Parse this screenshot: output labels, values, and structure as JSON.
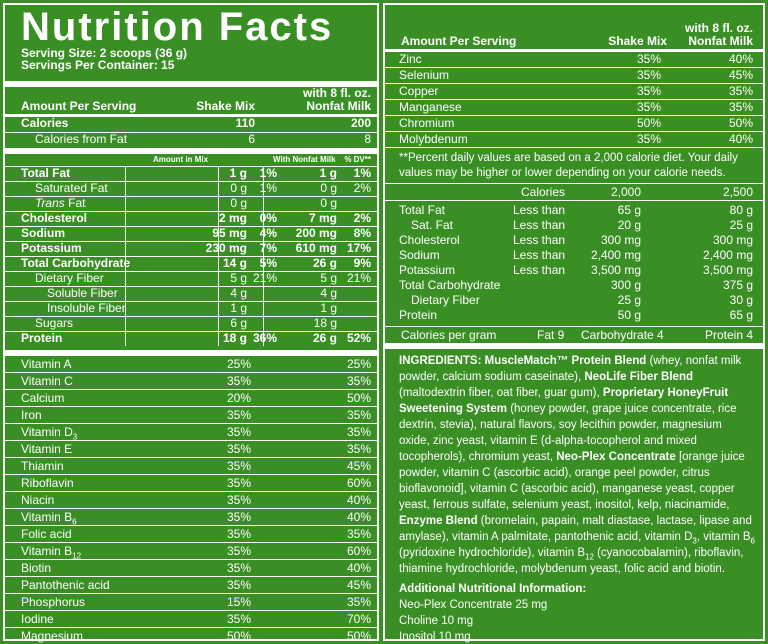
{
  "left": {
    "title": "Nutrition Facts",
    "serving_size": "Serving Size: 2 scoops (36 g)",
    "servings_per_container": "Servings Per Container: 15",
    "header": {
      "with_line1": "with 8 fl. oz.",
      "amount_per_serving": "Amount Per Serving",
      "shake_mix": "Shake Mix",
      "nonfat_milk": "Nonfat Milk"
    },
    "calories": [
      {
        "label": "Calories",
        "mix": "110",
        "milk": "200",
        "bold": true,
        "indent": 0
      },
      {
        "label": "Calories from Fat",
        "mix": "6",
        "milk": "8",
        "bold": false,
        "indent": 1
      }
    ],
    "sub_header": {
      "in_mix": "Amount in Mix",
      "with_milk": "With Nonfat Milk",
      "dv": "% DV**"
    },
    "nutrients": [
      {
        "label": "Total Fat",
        "amt": "1 g",
        "dv": "1%",
        "amt2": "1 g",
        "dv2": "1%",
        "bold": true,
        "indent": 0
      },
      {
        "label": "Saturated Fat",
        "amt": "0 g",
        "dv": "1%",
        "amt2": "0 g",
        "dv2": "2%",
        "bold": false,
        "indent": 1
      },
      {
        "label": "Trans Fat",
        "amt": "0 g",
        "dv": "",
        "amt2": "0 g",
        "dv2": "",
        "bold": false,
        "indent": 1,
        "italic_word": "Trans",
        "rest": " Fat"
      },
      {
        "label": "Cholesterol",
        "amt": "2 mg",
        "dv": "0%",
        "amt2": "7 mg",
        "dv2": "2%",
        "bold": true,
        "indent": 0
      },
      {
        "label": "Sodium",
        "amt": "95 mg",
        "dv": "4%",
        "amt2": "200 mg",
        "dv2": "8%",
        "bold": true,
        "indent": 0
      },
      {
        "label": "Potassium",
        "amt": "230 mg",
        "dv": "7%",
        "amt2": "610 mg",
        "dv2": "17%",
        "bold": true,
        "indent": 0
      },
      {
        "label": "Total Carbohydrate",
        "amt": "14 g",
        "dv": "5%",
        "amt2": "26 g",
        "dv2": "9%",
        "bold": true,
        "indent": 0
      },
      {
        "label": "Dietary Fiber",
        "amt": "5 g",
        "dv": "21%",
        "amt2": "5 g",
        "dv2": "21%",
        "bold": false,
        "indent": 1
      },
      {
        "label": "Soluble Fiber",
        "amt": "4 g",
        "dv": "",
        "amt2": "4 g",
        "dv2": "",
        "bold": false,
        "indent": 2
      },
      {
        "label": "Insoluble Fiber",
        "amt": "1 g",
        "dv": "",
        "amt2": "1 g",
        "dv2": "",
        "bold": false,
        "indent": 2
      },
      {
        "label": "Sugars",
        "amt": "6 g",
        "dv": "",
        "amt2": "18 g",
        "dv2": "",
        "bold": false,
        "indent": 1
      },
      {
        "label": "Protein",
        "amt": "18 g",
        "dv": "36%",
        "amt2": "26 g",
        "dv2": "52%",
        "bold": true,
        "indent": 0
      }
    ],
    "vitamins": [
      {
        "label": "Vitamin A",
        "sub": "",
        "mix": "25%",
        "milk": "25%"
      },
      {
        "label": "Vitamin C",
        "sub": "",
        "mix": "35%",
        "milk": "35%"
      },
      {
        "label": "Calcium",
        "sub": "",
        "mix": "20%",
        "milk": "50%"
      },
      {
        "label": "Iron",
        "sub": "",
        "mix": "35%",
        "milk": "35%"
      },
      {
        "label": "Vitamin D",
        "sub": "3",
        "mix": "35%",
        "milk": "35%"
      },
      {
        "label": "Vitamin E",
        "sub": "",
        "mix": "35%",
        "milk": "35%"
      },
      {
        "label": "Thiamin",
        "sub": "",
        "mix": "35%",
        "milk": "45%"
      },
      {
        "label": "Riboflavin",
        "sub": "",
        "mix": "35%",
        "milk": "60%"
      },
      {
        "label": "Niacin",
        "sub": "",
        "mix": "35%",
        "milk": "40%"
      },
      {
        "label": "Vitamin B",
        "sub": "6",
        "mix": "35%",
        "milk": "40%"
      },
      {
        "label": "Folic acid",
        "sub": "",
        "mix": "35%",
        "milk": "35%"
      },
      {
        "label": "Vitamin B",
        "sub": "12",
        "mix": "35%",
        "milk": "60%"
      },
      {
        "label": "Biotin",
        "sub": "",
        "mix": "35%",
        "milk": "40%"
      },
      {
        "label": "Pantothenic acid",
        "sub": "",
        "mix": "35%",
        "milk": "45%"
      },
      {
        "label": "Phosphorus",
        "sub": "",
        "mix": "15%",
        "milk": "35%"
      },
      {
        "label": "Iodine",
        "sub": "",
        "mix": "35%",
        "milk": "70%"
      },
      {
        "label": "Magnesium",
        "sub": "",
        "mix": "50%",
        "milk": "50%"
      }
    ]
  },
  "right": {
    "header": {
      "with_line1": "with 8 fl. oz.",
      "amount_per_serving": "Amount Per Serving",
      "shake_mix": "Shake Mix",
      "nonfat_milk": "Nonfat Milk"
    },
    "minerals": [
      {
        "label": "Zinc",
        "mix": "35%",
        "milk": "40%"
      },
      {
        "label": "Selenium",
        "mix": "35%",
        "milk": "45%"
      },
      {
        "label": "Copper",
        "mix": "35%",
        "milk": "35%"
      },
      {
        "label": "Manganese",
        "mix": "35%",
        "milk": "35%"
      },
      {
        "label": "Chromium",
        "mix": "50%",
        "milk": "50%"
      },
      {
        "label": "Molybdenum",
        "mix": "35%",
        "milk": "40%"
      }
    ],
    "footnote": "**Percent daily values are based on a 2,000 calorie diet. Your daily values may be higher or lower depending on your calorie needs.",
    "dv_table": {
      "header": {
        "calories": "Calories",
        "c1": "2,000",
        "c2": "2,500"
      },
      "rows": [
        {
          "label": "Total Fat",
          "qual": "Less than",
          "c1": "65 g",
          "c2": "80 g",
          "indent": 0
        },
        {
          "label": "Sat. Fat",
          "qual": "Less than",
          "c1": "20 g",
          "c2": "25 g",
          "indent": 1
        },
        {
          "label": "Cholesterol",
          "qual": "Less than",
          "c1": "300 mg",
          "c2": "300 mg",
          "indent": 0
        },
        {
          "label": "Sodium",
          "qual": "Less than",
          "c1": "2,400 mg",
          "c2": "2,400 mg",
          "indent": 0
        },
        {
          "label": "Potassium",
          "qual": "Less than",
          "c1": "3,500 mg",
          "c2": "3,500 mg",
          "indent": 0
        },
        {
          "label": "Total Carbohydrate",
          "qual": "",
          "c1": "300 g",
          "c2": "375 g",
          "indent": 0
        },
        {
          "label": "Dietary Fiber",
          "qual": "",
          "c1": "25 g",
          "c2": "30 g",
          "indent": 1
        },
        {
          "label": "Protein",
          "qual": "",
          "c1": "50 g",
          "c2": "65 g",
          "indent": 0
        }
      ],
      "per_gram": {
        "label": "Calories per gram",
        "fat": "Fat 9",
        "carb": "Carbohydrate 4",
        "protein": "Protein 4"
      }
    },
    "ingredients": {
      "p1_bold": "INGREDIENTS: MuscleMatch™ Protein Blend",
      "p1": " (whey, nonfat milk powder, calcium sodium caseinate), ",
      "p2_bold": "NeoLife Fiber Blend",
      "p2": " (maltodextrin fiber, oat fiber, guar gum), ",
      "p3_bold": "Proprietary HoneyFruit Sweetening System",
      "p3": " (honey powder, grape juice concentrate, rice dextrin, stevia), natural flavors, soy lecithin powder, magnesium oxide, zinc yeast, vitamin E (d-alpha-tocopherol and mixed tocopherols), chromium yeast, ",
      "p4_bold": "Neo-Plex Concentrate",
      "p4": " [orange juice powder, vitamin C (ascorbic acid), orange peel powder, citrus bioflavonoid], vitamin C (ascorbic acid), manganese yeast, copper yeast, ferrous sulfate, selenium yeast, inositol, kelp, niacinamide, ",
      "p5_bold": "Enzyme Blend",
      "p5": " (bromelain, papain, malt diastase, lactase, lipase and amylase), vitamin A palmitate, pantothenic acid, vitamin D",
      "p5_sub": "3",
      "p6": ", vitamin B",
      "p6_sub": "6",
      "p7": " (pyridoxine hydrochloride), vitamin B",
      "p7_sub": "12",
      "p8": " (cyanocobalamin), riboflavin, thiamine hydrochloride, molybdenum yeast, folic acid and biotin."
    },
    "additional": {
      "title": "Additional Nutritional Information:",
      "items": [
        "Neo-Plex Concentrate 25 mg",
        "Choline 10 mg",
        "Inositol 10 mg"
      ]
    }
  }
}
